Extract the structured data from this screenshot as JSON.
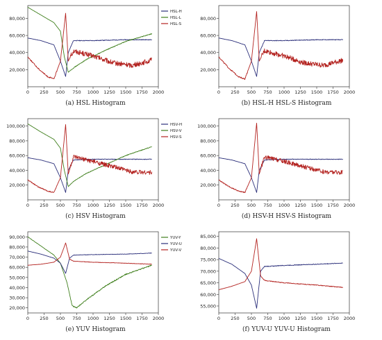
{
  "colors": {
    "blue": "#2b2f7a",
    "green": "#3f7f1c",
    "red": "#b3221f"
  },
  "chart_data": [
    {
      "type": "line",
      "caption": "(a) HSL Histogram",
      "ylim": [
        0,
        95000
      ],
      "xlim": [
        0,
        2000
      ],
      "yticks": [
        20000,
        40000,
        60000,
        80000
      ],
      "ytick_labels": [
        "20,000",
        "40,000",
        "60,000",
        "80,000"
      ],
      "xticks": [
        0,
        250,
        500,
        750,
        1000,
        1250,
        1500,
        1750,
        2000
      ],
      "xtick_labels": [
        "0",
        "250",
        "500",
        "750",
        "1000",
        "1250",
        "1500",
        "1750",
        "2000"
      ],
      "legend": [
        "HSL-H",
        "HSL-L",
        "HSL-S"
      ],
      "series": [
        {
          "name": "HSL-H",
          "color": "#2b2f7a",
          "noise": 400,
          "x": [
            0,
            200,
            400,
            500,
            580,
            620,
            700,
            1000,
            1500,
            1900
          ],
          "y": [
            57000,
            54000,
            49000,
            30000,
            12000,
            40000,
            54000,
            54000,
            55000,
            55000
          ]
        },
        {
          "name": "HSL-L",
          "color": "#3f7f1c",
          "noise": 400,
          "x": [
            0,
            200,
            400,
            500,
            560,
            620,
            700,
            900,
            1200,
            1500,
            1900
          ],
          "y": [
            93000,
            84000,
            75000,
            65000,
            35000,
            17000,
            22000,
            32000,
            43000,
            53000,
            62000
          ]
        },
        {
          "name": "HSL-S",
          "color": "#b3221f",
          "noise": 3000,
          "x": [
            0,
            150,
            300,
            400,
            500,
            580,
            620,
            700,
            1000,
            1300,
            1600,
            1900
          ],
          "y": [
            35000,
            22000,
            12000,
            9000,
            30000,
            86000,
            30000,
            42000,
            36000,
            28000,
            25000,
            31000
          ]
        }
      ]
    },
    {
      "type": "line",
      "caption": "(b) HSL-H HSL-S Histogram",
      "ylim": [
        0,
        95000
      ],
      "xlim": [
        0,
        2000
      ],
      "yticks": [
        20000,
        40000,
        60000,
        80000
      ],
      "ytick_labels": [
        "20,000",
        "40,000",
        "60,000",
        "80,000"
      ],
      "xticks": [
        0,
        250,
        500,
        750,
        1000,
        1250,
        1500,
        1750,
        2000
      ],
      "xtick_labels": [
        "0",
        "250",
        "500",
        "750",
        "1000",
        "1250",
        "1500",
        "1750",
        "2000"
      ],
      "legend": [],
      "series": [
        {
          "name": "HSL-H",
          "color": "#2b2f7a",
          "noise": 400,
          "x": [
            0,
            200,
            400,
            500,
            580,
            620,
            700,
            1000,
            1500,
            1900
          ],
          "y": [
            57000,
            54000,
            49000,
            30000,
            12000,
            40000,
            54000,
            54000,
            55000,
            55000
          ]
        },
        {
          "name": "HSL-S",
          "color": "#b3221f",
          "noise": 3000,
          "x": [
            0,
            150,
            300,
            400,
            500,
            580,
            620,
            700,
            1000,
            1300,
            1600,
            1900
          ],
          "y": [
            35000,
            22000,
            12000,
            9000,
            30000,
            88000,
            30000,
            42000,
            36000,
            28000,
            25000,
            31000
          ]
        }
      ]
    },
    {
      "type": "line",
      "caption": "(c) HSV Histogram",
      "ylim": [
        0,
        110000
      ],
      "xlim": [
        0,
        2000
      ],
      "yticks": [
        20000,
        40000,
        60000,
        80000,
        100000
      ],
      "ytick_labels": [
        "20,000",
        "40,000",
        "60,000",
        "80,000",
        "100,000"
      ],
      "xticks": [
        0,
        250,
        500,
        750,
        1000,
        1250,
        1500,
        1750,
        2000
      ],
      "xtick_labels": [
        "0",
        "250",
        "500",
        "750",
        "1000",
        "1250",
        "1500",
        "1750",
        "2000"
      ],
      "legend": [
        "HSV-H",
        "HSV-V",
        "HSV-S"
      ],
      "series": [
        {
          "name": "HSV-H",
          "color": "#2b2f7a",
          "noise": 400,
          "x": [
            0,
            200,
            400,
            500,
            580,
            620,
            700,
            1000,
            1500,
            1900
          ],
          "y": [
            57000,
            54000,
            49000,
            30000,
            10000,
            40000,
            54000,
            55000,
            55000,
            55000
          ]
        },
        {
          "name": "HSV-V",
          "color": "#3f7f1c",
          "noise": 400,
          "x": [
            0,
            200,
            400,
            500,
            560,
            620,
            700,
            900,
            1200,
            1500,
            1900
          ],
          "y": [
            103000,
            92000,
            82000,
            70000,
            40000,
            18000,
            25000,
            36000,
            48000,
            60000,
            72000
          ]
        },
        {
          "name": "HSV-S",
          "color": "#b3221f",
          "noise": 3000,
          "x": [
            0,
            150,
            300,
            400,
            500,
            580,
            620,
            700,
            1000,
            1300,
            1600,
            1900
          ],
          "y": [
            27000,
            18000,
            12000,
            10000,
            30000,
            102000,
            35000,
            58000,
            52000,
            45000,
            38000,
            37000
          ]
        }
      ]
    },
    {
      "type": "line",
      "caption": "(d) HSV-H HSV-S Histogram",
      "ylim": [
        0,
        110000
      ],
      "xlim": [
        0,
        2000
      ],
      "yticks": [
        20000,
        40000,
        60000,
        80000,
        100000
      ],
      "ytick_labels": [
        "20,000",
        "40,000",
        "60,000",
        "80,000",
        "100,000"
      ],
      "xticks": [
        0,
        250,
        500,
        750,
        1000,
        1250,
        1500,
        1750,
        2000
      ],
      "xtick_labels": [
        "0",
        "250",
        "500",
        "750",
        "1000",
        "1250",
        "1500",
        "1750",
        "2000"
      ],
      "legend": [],
      "series": [
        {
          "name": "HSV-H",
          "color": "#2b2f7a",
          "noise": 400,
          "x": [
            0,
            200,
            400,
            500,
            580,
            620,
            700,
            1000,
            1500,
            1900
          ],
          "y": [
            57000,
            54000,
            49000,
            30000,
            10000,
            40000,
            54000,
            55000,
            55000,
            55000
          ]
        },
        {
          "name": "HSV-S",
          "color": "#b3221f",
          "noise": 3000,
          "x": [
            0,
            150,
            300,
            400,
            500,
            580,
            620,
            700,
            1000,
            1300,
            1600,
            1900
          ],
          "y": [
            27000,
            18000,
            12000,
            10000,
            30000,
            104000,
            35000,
            58000,
            52000,
            45000,
            38000,
            37000
          ]
        }
      ]
    },
    {
      "type": "line",
      "caption": "(e) YUV Histogram",
      "ylim": [
        15000,
        95000
      ],
      "xlim": [
        0,
        2000
      ],
      "yticks": [
        20000,
        30000,
        40000,
        50000,
        60000,
        70000,
        80000,
        90000
      ],
      "ytick_labels": [
        "20,000",
        "30,000",
        "40,000",
        "50,000",
        "60,000",
        "70,000",
        "80,000",
        "90,000"
      ],
      "xticks": [
        0,
        250,
        500,
        750,
        1000,
        1250,
        1500,
        1750,
        2000
      ],
      "xtick_labels": [
        "0",
        "250",
        "500",
        "750",
        "1000",
        "1250",
        "1500",
        "1750",
        "2000"
      ],
      "legend": [
        "YUV-Y",
        "YUV-U",
        "YUV-V"
      ],
      "series": [
        {
          "name": "YUV-Y",
          "color": "#3f7f1c",
          "noise": 500,
          "x": [
            0,
            200,
            400,
            500,
            600,
            680,
            750,
            900,
            1200,
            1500,
            1900
          ],
          "y": [
            90000,
            81000,
            72000,
            64000,
            45000,
            22000,
            20000,
            28000,
            42000,
            53000,
            62000
          ]
        },
        {
          "name": "YUV-U",
          "color": "#2b2f7a",
          "noise": 200,
          "x": [
            0,
            200,
            400,
            500,
            580,
            640,
            700,
            1000,
            1500,
            1900
          ],
          "y": [
            76000,
            73000,
            69000,
            64000,
            54000,
            69000,
            72000,
            72500,
            73000,
            74000
          ]
        },
        {
          "name": "YUV-V",
          "color": "#b3221f",
          "noise": 200,
          "x": [
            0,
            200,
            400,
            500,
            580,
            640,
            700,
            1000,
            1500,
            1900
          ],
          "y": [
            62000,
            63000,
            65000,
            70000,
            84000,
            68000,
            66000,
            65000,
            64000,
            63000
          ]
        }
      ]
    },
    {
      "type": "line",
      "caption": "(f) YUV-U YUV-U Histogram",
      "ylim": [
        52000,
        87000
      ],
      "xlim": [
        0,
        2000
      ],
      "yticks": [
        55000,
        60000,
        65000,
        70000,
        75000,
        80000,
        85000
      ],
      "ytick_labels": [
        "55,000",
        "60,000",
        "65,000",
        "70,000",
        "75,000",
        "80,000",
        "85,000"
      ],
      "xticks": [
        0,
        250,
        500,
        750,
        1000,
        1250,
        1500,
        1750,
        2000
      ],
      "xtick_labels": [
        "0",
        "250",
        "500",
        "750",
        "1000",
        "1250",
        "1500",
        "1750",
        "2000"
      ],
      "legend": [],
      "series": [
        {
          "name": "YUV-U",
          "color": "#2b2f7a",
          "noise": 150,
          "x": [
            0,
            200,
            400,
            500,
            580,
            640,
            700,
            1000,
            1500,
            1900
          ],
          "y": [
            75500,
            73000,
            69000,
            64000,
            54000,
            70000,
            72000,
            72500,
            73000,
            73500
          ]
        },
        {
          "name": "YUV-V",
          "color": "#b3221f",
          "noise": 150,
          "x": [
            0,
            200,
            400,
            500,
            580,
            640,
            700,
            1000,
            1500,
            1900
          ],
          "y": [
            62000,
            63500,
            65500,
            70000,
            84000,
            68000,
            66000,
            65000,
            64000,
            63000
          ]
        }
      ]
    }
  ]
}
